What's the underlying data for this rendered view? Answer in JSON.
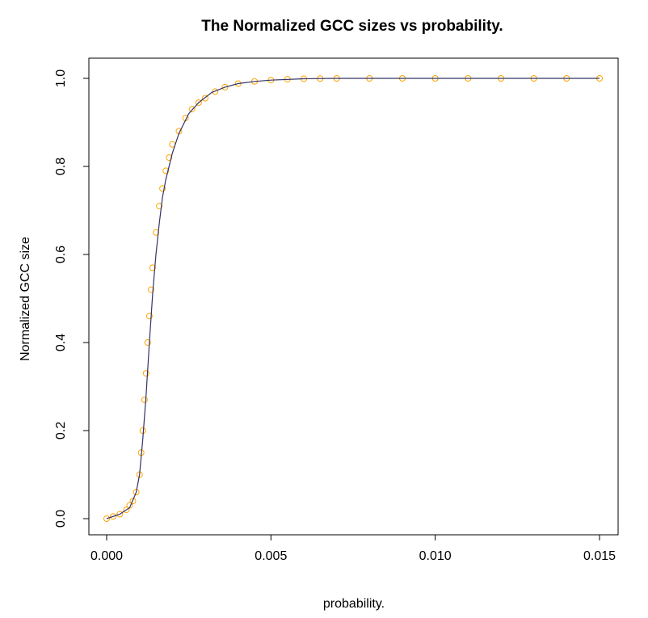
{
  "chart_data": {
    "type": "scatter",
    "title": "The Normalized GCC sizes vs probability.",
    "xlabel": "probability.",
    "ylabel": "Normalized GCC size",
    "xlim": [
      0,
      0.015
    ],
    "ylim": [
      0,
      1.0
    ],
    "x_ticks": [
      "0.000",
      "0.005",
      "0.010",
      "0.015"
    ],
    "y_ticks": [
      "0.0",
      "0.2",
      "0.4",
      "0.6",
      "0.8",
      "1.0"
    ],
    "grid": false,
    "legend": "none",
    "colors": {
      "points": "#ffa500",
      "fit_line": "#333366"
    },
    "series": [
      {
        "kind": "points",
        "x": [
          0.0,
          0.0002,
          0.0004,
          0.0006,
          0.0007,
          0.0008,
          0.0009,
          0.001,
          0.00105,
          0.0011,
          0.00115,
          0.0012,
          0.00125,
          0.0013,
          0.00135,
          0.0014,
          0.0015,
          0.0016,
          0.0017,
          0.0018,
          0.0019,
          0.002,
          0.0022,
          0.0024,
          0.0026,
          0.0028,
          0.003,
          0.0033,
          0.0036,
          0.004,
          0.0045,
          0.005,
          0.0055,
          0.006,
          0.0065,
          0.007,
          0.008,
          0.009,
          0.01,
          0.011,
          0.012,
          0.013,
          0.014,
          0.015
        ],
        "y": [
          0.0,
          0.005,
          0.01,
          0.02,
          0.03,
          0.04,
          0.06,
          0.1,
          0.15,
          0.2,
          0.27,
          0.33,
          0.4,
          0.46,
          0.52,
          0.57,
          0.65,
          0.71,
          0.75,
          0.79,
          0.82,
          0.85,
          0.88,
          0.91,
          0.93,
          0.945,
          0.955,
          0.97,
          0.98,
          0.988,
          0.993,
          0.996,
          0.998,
          0.999,
          0.9995,
          1.0,
          1.0,
          1.0,
          1.0,
          1.0,
          1.0,
          1.0,
          1.0,
          1.0
        ]
      },
      {
        "kind": "fit-line",
        "x": [
          0.0,
          0.0004,
          0.0007,
          0.0009,
          0.001,
          0.0011,
          0.0012,
          0.0013,
          0.0014,
          0.0015,
          0.0016,
          0.0017,
          0.0018,
          0.002,
          0.0022,
          0.0025,
          0.0028,
          0.0032,
          0.0036,
          0.004,
          0.0045,
          0.005,
          0.006,
          0.007,
          0.008,
          0.01,
          0.012,
          0.015
        ],
        "y": [
          0.0,
          0.01,
          0.025,
          0.06,
          0.1,
          0.18,
          0.28,
          0.4,
          0.51,
          0.6,
          0.67,
          0.73,
          0.77,
          0.83,
          0.875,
          0.92,
          0.945,
          0.968,
          0.98,
          0.988,
          0.993,
          0.996,
          0.999,
          1.0,
          1.0,
          1.0,
          1.0,
          1.0
        ]
      }
    ]
  }
}
